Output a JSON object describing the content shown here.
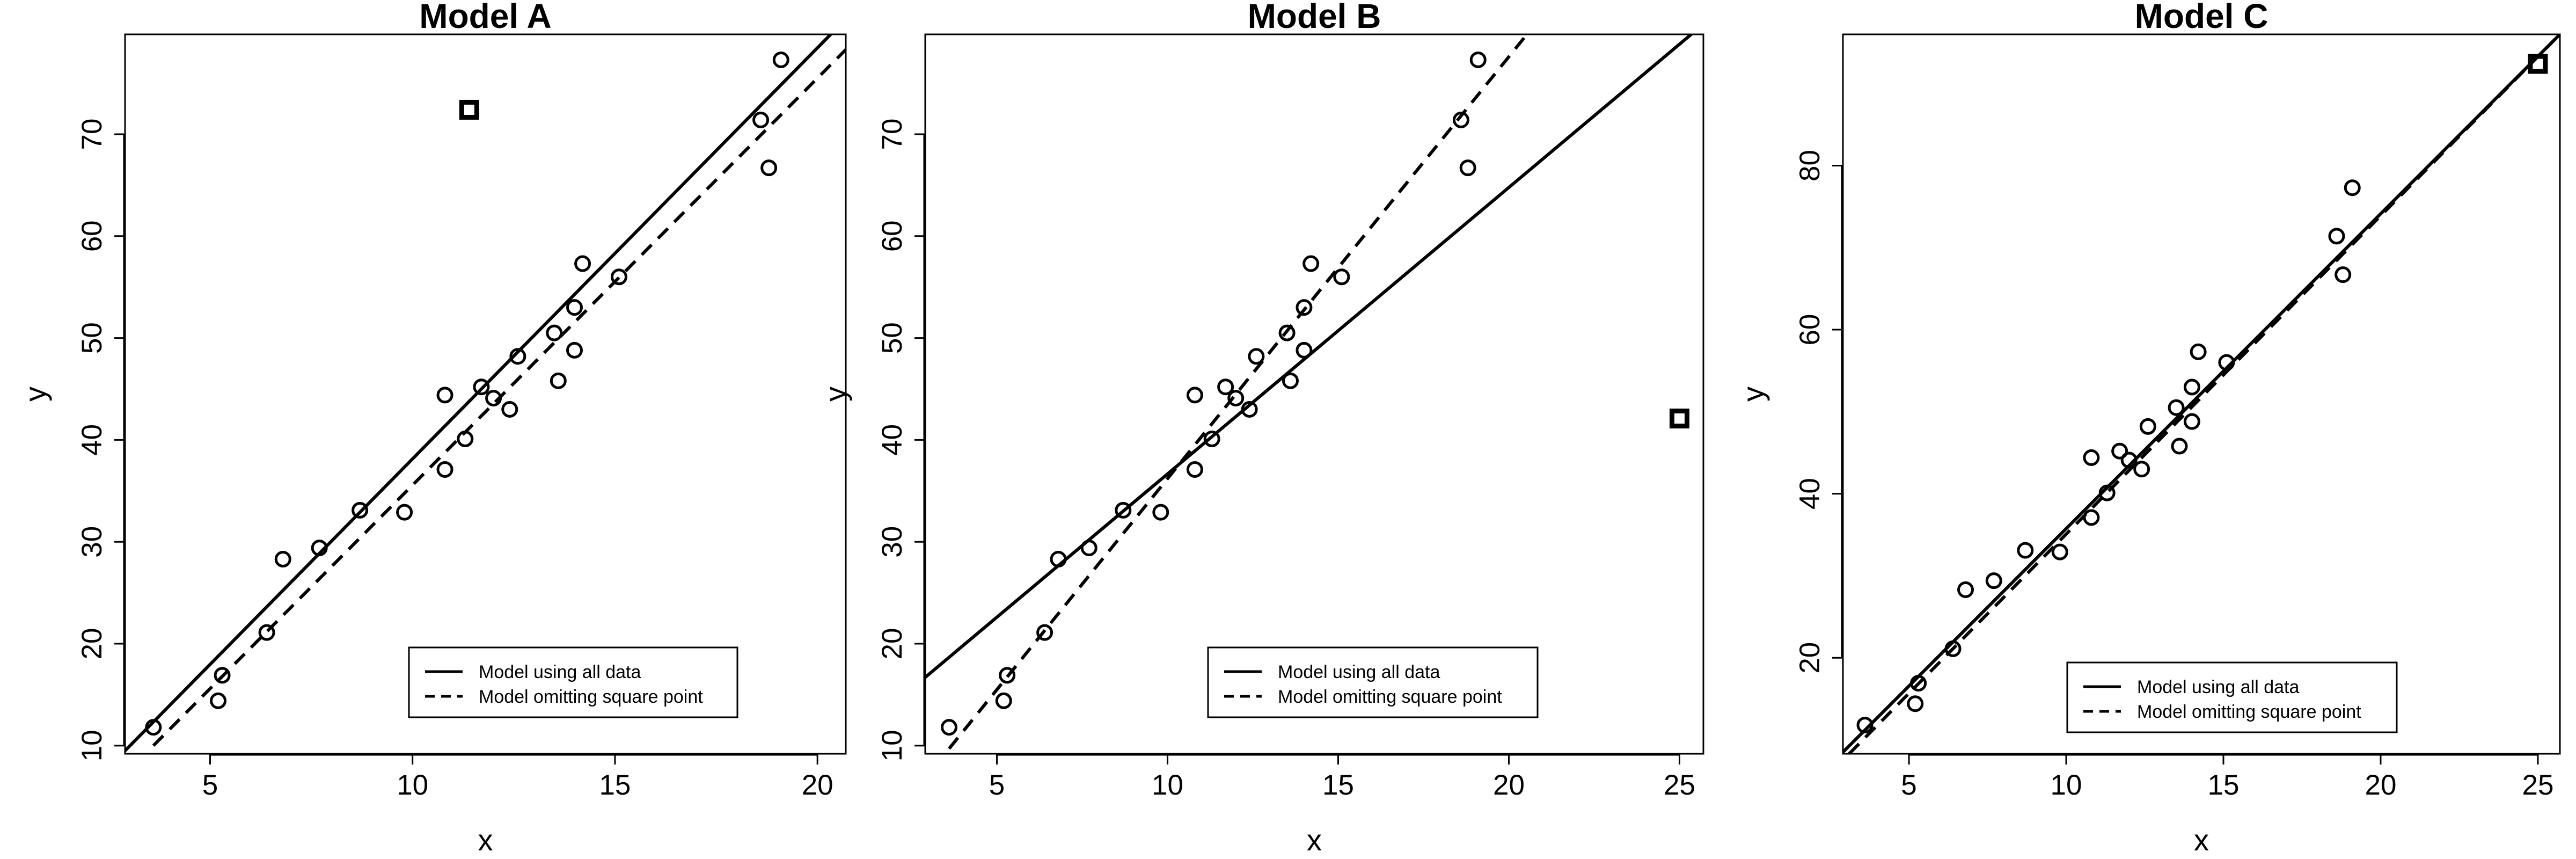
{
  "chart_data": [
    {
      "type": "scatter",
      "title": "Model A",
      "xlabel": "x",
      "ylabel": "y",
      "xlim": [
        2.9,
        20.7
      ],
      "ylim": [
        9.2,
        79.8
      ],
      "xticks": [
        "5",
        "10",
        "15",
        "20"
      ],
      "yticks": [
        "10",
        "20",
        "30",
        "40",
        "50",
        "60",
        "70"
      ],
      "points": [
        [
          3.6,
          11.8
        ],
        [
          5.2,
          14.4
        ],
        [
          5.3,
          16.9
        ],
        [
          6.4,
          21.1
        ],
        [
          6.8,
          28.3
        ],
        [
          7.7,
          29.4
        ],
        [
          8.7,
          33.1
        ],
        [
          9.8,
          32.9
        ],
        [
          10.8,
          37.1
        ],
        [
          10.8,
          44.4
        ],
        [
          11.3,
          40.1
        ],
        [
          11.7,
          45.2
        ],
        [
          12.0,
          44.1
        ],
        [
          12.4,
          43.0
        ],
        [
          12.6,
          48.2
        ],
        [
          13.5,
          50.5
        ],
        [
          13.6,
          45.8
        ],
        [
          14.0,
          48.8
        ],
        [
          14.0,
          53.0
        ],
        [
          14.2,
          57.3
        ],
        [
          15.1,
          56.0
        ],
        [
          18.6,
          71.4
        ],
        [
          18.8,
          66.7
        ],
        [
          19.1,
          77.3
        ]
      ],
      "square_point": [
        11.4,
        72.4
      ],
      "series": [
        {
          "name": "Model using all data",
          "style": "solid",
          "line": [
            [
              2.9,
              9.5
            ],
            [
              20.7,
              81.3
            ]
          ]
        },
        {
          "name": "Model omitting square point",
          "style": "dashed",
          "line": [
            [
              3.6,
              10.0
            ],
            [
              20.7,
              78.3
            ]
          ]
        }
      ],
      "legend_placement": "bottom-right"
    },
    {
      "type": "scatter",
      "title": "Model B",
      "xlabel": "x",
      "ylabel": "y",
      "xlim": [
        2.9,
        25.7
      ],
      "ylim": [
        9.2,
        79.8
      ],
      "xticks": [
        "5",
        "10",
        "15",
        "20",
        "25"
      ],
      "yticks": [
        "10",
        "20",
        "30",
        "40",
        "50",
        "60",
        "70"
      ],
      "points": [
        [
          3.6,
          11.8
        ],
        [
          5.2,
          14.4
        ],
        [
          5.3,
          16.9
        ],
        [
          6.4,
          21.1
        ],
        [
          6.8,
          28.3
        ],
        [
          7.7,
          29.4
        ],
        [
          8.7,
          33.1
        ],
        [
          9.8,
          32.9
        ],
        [
          10.8,
          37.1
        ],
        [
          10.8,
          44.4
        ],
        [
          11.3,
          40.1
        ],
        [
          11.7,
          45.2
        ],
        [
          12.0,
          44.1
        ],
        [
          12.4,
          43.0
        ],
        [
          12.6,
          48.2
        ],
        [
          13.5,
          50.5
        ],
        [
          13.6,
          45.8
        ],
        [
          14.0,
          48.8
        ],
        [
          14.0,
          53.0
        ],
        [
          14.2,
          57.3
        ],
        [
          15.1,
          56.0
        ],
        [
          18.6,
          71.4
        ],
        [
          18.8,
          66.7
        ],
        [
          19.1,
          77.3
        ]
      ],
      "square_point": [
        25.0,
        42.1
      ],
      "series": [
        {
          "name": "Model using all data",
          "style": "solid",
          "line": [
            [
              2.9,
              16.7
            ],
            [
              25.7,
              80.8
            ]
          ]
        },
        {
          "name": "Model omitting square point",
          "style": "dashed",
          "line": [
            [
              3.6,
              9.7
            ],
            [
              20.7,
              80.5
            ]
          ]
        }
      ],
      "legend_placement": "bottom-right"
    },
    {
      "type": "scatter",
      "title": "Model C",
      "xlabel": "x",
      "ylabel": "y",
      "xlim": [
        2.9,
        25.7
      ],
      "ylim": [
        8.3,
        96.0
      ],
      "xticks": [
        "5",
        "10",
        "15",
        "20",
        "25"
      ],
      "yticks": [
        "20",
        "40",
        "60",
        "80"
      ],
      "points": [
        [
          3.6,
          11.8
        ],
        [
          5.2,
          14.4
        ],
        [
          5.3,
          16.9
        ],
        [
          6.4,
          21.1
        ],
        [
          6.8,
          28.3
        ],
        [
          7.7,
          29.4
        ],
        [
          8.7,
          33.1
        ],
        [
          9.8,
          32.9
        ],
        [
          10.8,
          37.1
        ],
        [
          10.8,
          44.4
        ],
        [
          11.3,
          40.1
        ],
        [
          11.7,
          45.2
        ],
        [
          12.0,
          44.1
        ],
        [
          12.4,
          43.0
        ],
        [
          12.6,
          48.2
        ],
        [
          13.5,
          50.5
        ],
        [
          13.6,
          45.8
        ],
        [
          14.0,
          48.8
        ],
        [
          14.0,
          53.0
        ],
        [
          14.2,
          57.3
        ],
        [
          15.1,
          56.0
        ],
        [
          18.6,
          71.4
        ],
        [
          18.8,
          66.7
        ],
        [
          19.1,
          77.3
        ]
      ],
      "square_point": [
        25.0,
        92.4
      ],
      "series": [
        {
          "name": "Model using all data",
          "style": "solid",
          "line": [
            [
              2.9,
              8.5
            ],
            [
              25.7,
              96.0
            ]
          ]
        },
        {
          "name": "Model omitting square point",
          "style": "dashed",
          "line": [
            [
              3.1,
              8.3
            ],
            [
              25.7,
              96.0
            ]
          ]
        }
      ],
      "legend_placement": "bottom-right"
    }
  ]
}
